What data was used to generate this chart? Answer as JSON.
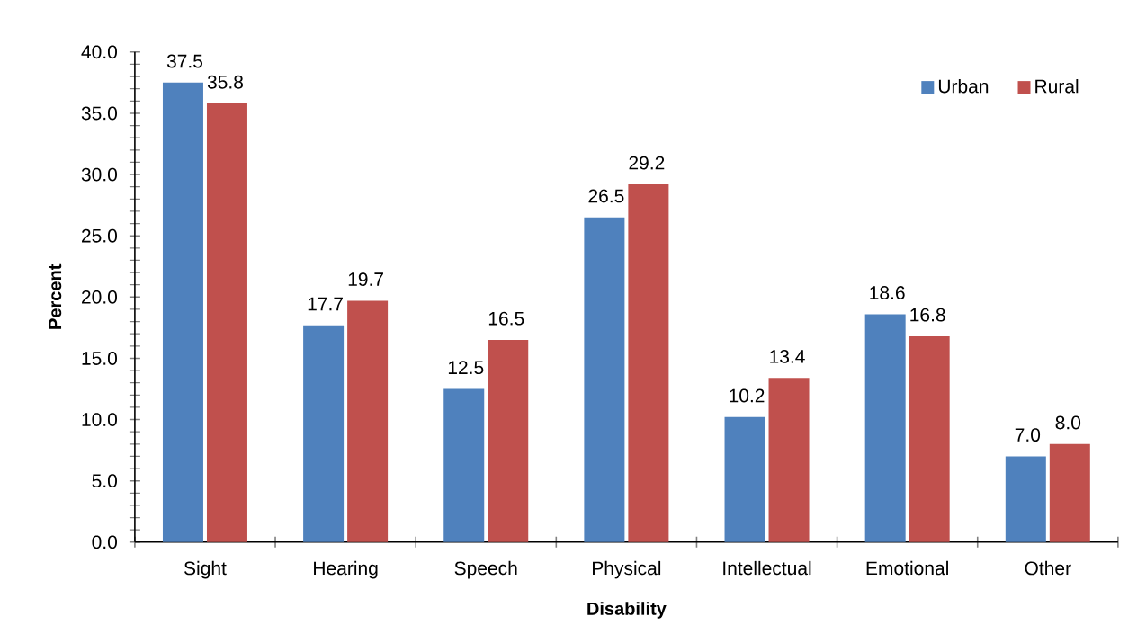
{
  "chart_data": {
    "type": "bar",
    "xlabel": "Disability",
    "ylabel": "Percent",
    "categories": [
      "Sight",
      "Hearing",
      "Speech",
      "Physical",
      "Intellectual",
      "Emotional",
      "Other"
    ],
    "series": [
      {
        "name": "Urban",
        "color": "#4f81bd",
        "values": [
          37.5,
          17.7,
          12.5,
          26.5,
          10.2,
          18.6,
          7.0
        ],
        "value_labels": [
          "37.5",
          "17.7",
          "12.5",
          "26.5",
          "10.2",
          "18.6",
          "7.0"
        ]
      },
      {
        "name": "Rural",
        "color": "#c0504d",
        "values": [
          35.8,
          19.7,
          16.5,
          29.2,
          13.4,
          16.8,
          8.0
        ],
        "value_labels": [
          "35.8",
          "19.7",
          "16.5",
          "29.2",
          "13.4",
          "16.8",
          "8.0"
        ]
      }
    ],
    "ylim": [
      0,
      40
    ],
    "yticks": [
      {
        "value": 0,
        "label": "0.0"
      },
      {
        "value": 5,
        "label": "5.0"
      },
      {
        "value": 10,
        "label": "10.0"
      },
      {
        "value": 15,
        "label": "15.0"
      },
      {
        "value": 20,
        "label": "20.0"
      },
      {
        "value": 25,
        "label": "25.0"
      },
      {
        "value": 30,
        "label": "30.0"
      },
      {
        "value": 35,
        "label": "35.0"
      },
      {
        "value": 40,
        "label": "40.0"
      }
    ],
    "grid": false,
    "legend": "top right"
  }
}
